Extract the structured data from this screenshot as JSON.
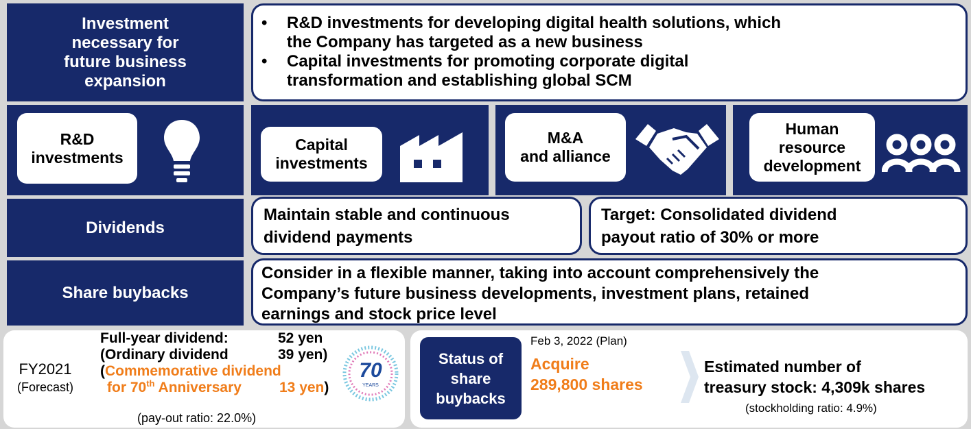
{
  "investment": {
    "label_lines": [
      "Investment",
      "necessary for",
      "future business",
      "expansion"
    ],
    "bullets": [
      [
        "R&D investments for developing digital health solutions, which",
        "the Company has targeted as a new business"
      ],
      [
        "Capital investments for promoting corporate digital",
        "transformation and establishing global SCM"
      ]
    ]
  },
  "categories": [
    {
      "lines": [
        "R&D",
        "investments"
      ]
    },
    {
      "lines": [
        "Capital",
        "investments"
      ]
    },
    {
      "lines": [
        "M&A",
        "and alliance"
      ]
    },
    {
      "lines": [
        "Human",
        "resource",
        "development"
      ]
    }
  ],
  "dividends": {
    "label": "Dividends",
    "items": [
      [
        "Maintain stable and continuous",
        "dividend payments"
      ],
      [
        "Target: Consolidated dividend",
        "payout ratio of 30% or more"
      ]
    ]
  },
  "share_buybacks": {
    "label": "Share buybacks",
    "lines": [
      "Consider in a flexible manner, taking into account comprehensively the",
      "Company’s future business developments, investment plans, retained",
      "earnings and stock price level"
    ]
  },
  "fy2021": {
    "label": "FY2021",
    "note": "(Forecast)",
    "full_year": "Full-year dividend:",
    "full_year_amount": "52 yen",
    "ordinary": "(Ordinary dividend",
    "ordinary_amount": "39 yen)",
    "open_paren": "(",
    "commemorative": "Commemorative dividend",
    "anniversary_pre": "for 70",
    "anniversary_sup": "th",
    "anniversary_post": " Anniversary",
    "commemorative_amount": "13 yen",
    "close_paren": ")",
    "payout": "(pay-out ratio: 22.0%)",
    "logo_number": "70",
    "logo_text": "YEARS"
  },
  "buyback_status": {
    "label_lines": [
      "Status of",
      "share",
      "buybacks"
    ],
    "date": "Feb 3, 2022 (Plan)",
    "acquire_lines": [
      "Acquire",
      "289,800 shares"
    ],
    "estimate_lines": [
      "Estimated number of",
      "treasury stock: 4,309k shares"
    ],
    "ratio": "(stockholding ratio: 4.9%)"
  }
}
